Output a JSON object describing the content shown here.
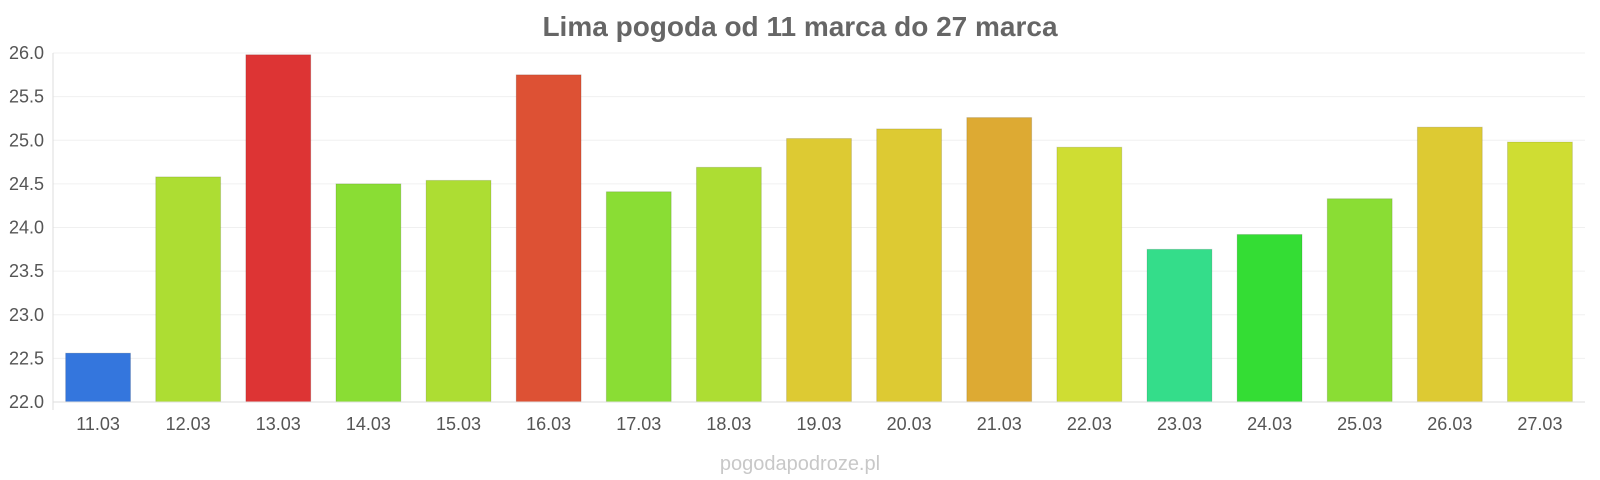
{
  "chart_data": {
    "type": "bar",
    "title": "Lima pogoda od 11 marca do 27 marca",
    "xlabel": "",
    "ylabel": "",
    "categories": [
      "11.03",
      "12.03",
      "13.03",
      "14.03",
      "15.03",
      "16.03",
      "17.03",
      "18.03",
      "19.03",
      "20.03",
      "21.03",
      "22.03",
      "23.03",
      "24.03",
      "25.03",
      "26.03",
      "27.03"
    ],
    "values": [
      22.56,
      24.58,
      25.98,
      24.5,
      24.54,
      25.75,
      24.41,
      24.69,
      25.02,
      25.13,
      25.26,
      24.92,
      23.75,
      23.92,
      24.33,
      25.15,
      24.98
    ],
    "colors": [
      "#3476DD",
      "#ADDD33",
      "#DD3434",
      "#8ADD34",
      "#ADDD33",
      "#DD5134",
      "#8ADD34",
      "#ADDD33",
      "#DDCA33",
      "#DDCA33",
      "#DDAA33",
      "#CFDD33",
      "#34DD8A",
      "#34DD34",
      "#8ADD34",
      "#DDCA33",
      "#CFDD33"
    ],
    "ylim": [
      22.0,
      26.0
    ],
    "yticks": [
      "22.0",
      "22.5",
      "23.0",
      "23.5",
      "24.0",
      "24.5",
      "25.0",
      "25.5",
      "26.0"
    ],
    "grid": true,
    "legend": "none"
  },
  "watermark": "pogodapodroze.pl"
}
